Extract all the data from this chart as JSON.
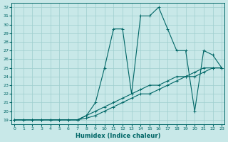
{
  "xlabel": "Humidex (Indice chaleur)",
  "bg_color": "#c8e8e8",
  "grid_color": "#9ecece",
  "line_color": "#006666",
  "x_data": [
    0,
    1,
    2,
    3,
    4,
    5,
    6,
    7,
    8,
    9,
    10,
    11,
    12,
    13,
    14,
    15,
    16,
    17,
    18,
    19,
    20,
    21,
    22,
    23
  ],
  "series1": [
    19,
    19,
    19,
    19,
    19,
    19,
    19,
    19,
    19.5,
    21,
    25,
    29.5,
    29.5,
    22,
    31,
    31,
    32,
    29.5,
    27,
    27,
    20,
    27,
    26.5,
    25
  ],
  "series2": [
    19,
    19,
    19,
    19,
    19,
    19,
    19,
    19,
    19.5,
    20,
    20.5,
    21,
    21.5,
    22,
    22.5,
    23,
    23,
    23.5,
    24,
    24,
    24.5,
    25,
    25,
    25
  ],
  "series3": [
    19,
    19,
    19,
    19,
    19,
    19,
    19,
    19,
    19.2,
    19.5,
    20,
    20.5,
    21,
    21.5,
    22,
    22,
    22.5,
    23,
    23.5,
    24,
    24,
    24.5,
    25,
    25
  ],
  "ylim": [
    18.5,
    32.5
  ],
  "yticks": [
    19,
    20,
    21,
    22,
    23,
    24,
    25,
    26,
    27,
    28,
    29,
    30,
    31,
    32
  ],
  "xticks": [
    0,
    1,
    2,
    3,
    4,
    5,
    6,
    7,
    8,
    9,
    10,
    11,
    12,
    13,
    14,
    15,
    16,
    17,
    18,
    19,
    20,
    21,
    22,
    23
  ],
  "xlim": [
    -0.3,
    23.3
  ]
}
